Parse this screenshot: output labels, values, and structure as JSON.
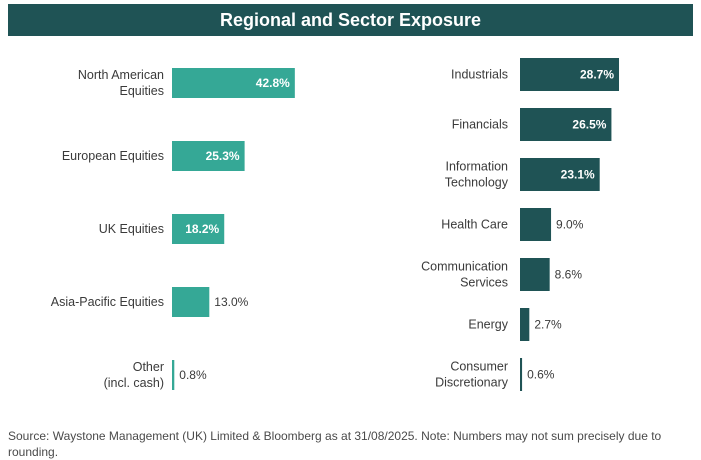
{
  "title": "Regional and Sector Exposure",
  "colors": {
    "header_bg": "#1f5355",
    "regional_bar": "#35a896",
    "sector_bar": "#1f5355"
  },
  "chart_data": [
    {
      "type": "bar",
      "orientation": "horizontal",
      "categories": [
        "North American Equities",
        "European Equities",
        "UK Equities",
        "Asia-Pacific Equities",
        "Other (incl. cash)"
      ],
      "category_lines": [
        [
          "North American",
          "Equities"
        ],
        [
          "European Equities"
        ],
        [
          "UK Equities"
        ],
        [
          "Asia-Pacific Equities"
        ],
        [
          "Other",
          "(incl. cash)"
        ]
      ],
      "values": [
        42.8,
        25.3,
        18.2,
        13.0,
        0.8
      ],
      "value_labels": [
        "42.8%",
        "25.3%",
        "18.2%",
        "13.0%",
        "0.8%"
      ]
    },
    {
      "type": "bar",
      "orientation": "horizontal",
      "categories": [
        "Industrials",
        "Financials",
        "Information Technology",
        "Health Care",
        "Communication Services",
        "Energy",
        "Consumer Discretionary"
      ],
      "category_lines": [
        [
          "Industrials"
        ],
        [
          "Financials"
        ],
        [
          "Information",
          "Technology"
        ],
        [
          "Health Care"
        ],
        [
          "Communication",
          "Services"
        ],
        [
          "Energy"
        ],
        [
          "Consumer",
          "Discretionary"
        ]
      ],
      "values": [
        28.7,
        26.5,
        23.1,
        9.0,
        8.6,
        2.7,
        0.6
      ],
      "value_labels": [
        "28.7%",
        "26.5%",
        "23.1%",
        "9.0%",
        "8.6%",
        "2.7%",
        "0.6%"
      ]
    }
  ],
  "source": "Source: Waystone Management (UK) Limited & Bloomberg as at 31/08/2025. Note: Numbers may not sum precisely due to rounding."
}
